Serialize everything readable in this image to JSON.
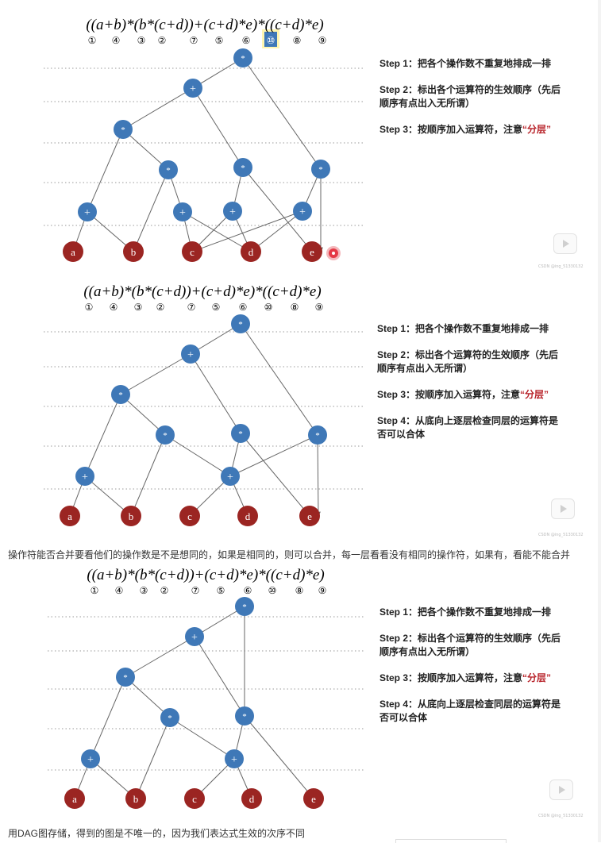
{
  "formula": "((a+b)*(b*(c+d))+(c+d)*e)*((c+d)*e)",
  "order_labels": [
    "①",
    "④",
    "③",
    "②",
    "⑦",
    "⑤",
    "⑥",
    "⑩",
    "⑧",
    "⑨"
  ],
  "panels": [
    {
      "steps": [
        {
          "label": "Step 1：",
          "text": "把各个操作数不重复地排成一排"
        },
        {
          "label": "Step 2：",
          "text": "标出各个运算符的生效顺序（先后顺序有点出入无所谓）"
        },
        {
          "label": "Step 3：",
          "text": "按顺序加入运算符，注意",
          "highlight": "“分层”"
        }
      ]
    },
    {
      "steps": [
        {
          "label": "Step 1：",
          "text": "把各个操作数不重复地排成一排"
        },
        {
          "label": "Step 2：",
          "text": "标出各个运算符的生效顺序（先后顺序有点出入无所谓）"
        },
        {
          "label": "Step 3：",
          "text": "按顺序加入运算符，注意",
          "highlight": "“分层”"
        },
        {
          "label": "Step 4：",
          "text": "从底向上逐层检查同层的运算符是否可以合体"
        }
      ]
    },
    {
      "steps": [
        {
          "label": "Step 1：",
          "text": "把各个操作数不重复地排成一排"
        },
        {
          "label": "Step 2：",
          "text": "标出各个运算符的生效顺序（先后顺序有点出入无所谓）"
        },
        {
          "label": "Step 3：",
          "text": "按顺序加入运算符，注意",
          "highlight": "“分层”"
        },
        {
          "label": "Step 4：",
          "text": "从底向上逐层检查同层的运算符是否可以合体"
        }
      ]
    }
  ],
  "captions": {
    "merge_note": "操作符能否合并要看他们的操作数是不是想同的，如果是相同的，则可以合并，每一层看看没有相同的操作符，如果有，看能不能合并",
    "dag_note": "用DAG图存储，得到的图是不唯一的，因为我们表达式生效的次序不同"
  },
  "watermark": "CSDN @ing_51330132",
  "node_symbols": {
    "times": "*",
    "plus": "+"
  },
  "leaf_labels": [
    "a",
    "b",
    "c",
    "d",
    "e"
  ],
  "colors": {
    "op_node": "#3f78b7",
    "leaf_node": "#9b2522",
    "highlight_box": "#3f78b7",
    "highlight_glow": "#fff6b0",
    "edge": "#666666",
    "step_highlight": "#b8232a"
  }
}
